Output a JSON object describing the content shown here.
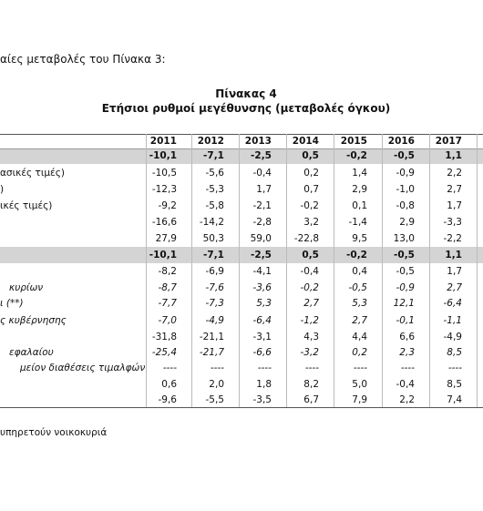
{
  "intro": "αίες μεταβολές του Πίνακα 3:",
  "title": "Πίνακας 4",
  "subtitle": "Ετήσιοι ρυθμοί μεγέθυνσης (μεταβολές όγκου)",
  "table": {
    "columns": [
      "2011",
      "2012",
      "2013",
      "2014",
      "2015",
      "2016",
      "2017"
    ],
    "rows": [
      {
        "label": null,
        "values": [
          "-10,1",
          "-7,1",
          "-2,5",
          "0,5",
          "-0,2",
          "-0,5",
          "1,1"
        ]
      },
      {
        "label": "ασικές τιμές)",
        "values": [
          "-10,5",
          "-5,6",
          "-0,4",
          "0,2",
          "1,4",
          "-0,9",
          "2,2"
        ]
      },
      {
        "label": ")",
        "values": [
          "-12,3",
          "-5,3",
          "1,7",
          "0,7",
          "2,9",
          "-1,0",
          "2,7"
        ]
      },
      {
        "label": "ικές τιμές)",
        "values": [
          "-9,2",
          "-5,8",
          "-2,1",
          "-0,2",
          "0,1",
          "-0,8",
          "1,7"
        ]
      },
      {
        "label": null,
        "values": [
          "-16,6",
          "-14,2",
          "-2,8",
          "3,2",
          "-1,4",
          "2,9",
          "-3,3"
        ]
      },
      {
        "label": null,
        "values": [
          "27,9",
          "50,3",
          "59,0",
          "-22,8",
          "9,5",
          "13,0",
          "-2,2"
        ]
      },
      {
        "label": null,
        "values": [
          "-10,1",
          "-7,1",
          "-2,5",
          "0,5",
          "-0,2",
          "-0,5",
          "1,1"
        ]
      },
      {
        "label": null,
        "values": [
          "-8,2",
          "-6,9",
          "-4,1",
          "-0,4",
          "0,4",
          "-0,5",
          "1,7"
        ]
      },
      {
        "label": "κυρίων",
        "values": [
          "-8,7",
          "-7,6",
          "-3,6",
          "-0,2",
          "-0,5",
          "-0,9",
          "2,7"
        ]
      },
      {
        "label": "ι (**)",
        "values": [
          "-7,7",
          "-7,3",
          "5,3",
          "2,7",
          "5,3",
          "12,1",
          "-6,4"
        ]
      },
      {
        "label": "ς κυβέρνησης",
        "values": [
          "-7,0",
          "-4,9",
          "-6,4",
          "-1,2",
          "2,7",
          "-0,1",
          "-1,1"
        ]
      },
      {
        "label": null,
        "values": [
          "-31,8",
          "-21,1",
          "-3,1",
          "4,3",
          "4,4",
          "6,6",
          "-4,9"
        ]
      },
      {
        "label": "εφαλαίου",
        "values": [
          "-25,4",
          "-21,7",
          "-6,6",
          "-3,2",
          "0,2",
          "2,3",
          "8,5"
        ]
      },
      {
        "label": "μείον διαθέσεις τιμαλφών",
        "values": [
          "----",
          "----",
          "----",
          "----",
          "----",
          "----",
          "----"
        ]
      },
      {
        "label": null,
        "values": [
          "0,6",
          "2,0",
          "1,8",
          "8,2",
          "5,0",
          "-0,4",
          "8,5"
        ]
      },
      {
        "label": null,
        "values": [
          "-9,6",
          "-5,5",
          "-3,5",
          "6,7",
          "7,9",
          "2,2",
          "7,4"
        ]
      }
    ]
  },
  "footnote": "υπηρετούν νοικοκυριά"
}
